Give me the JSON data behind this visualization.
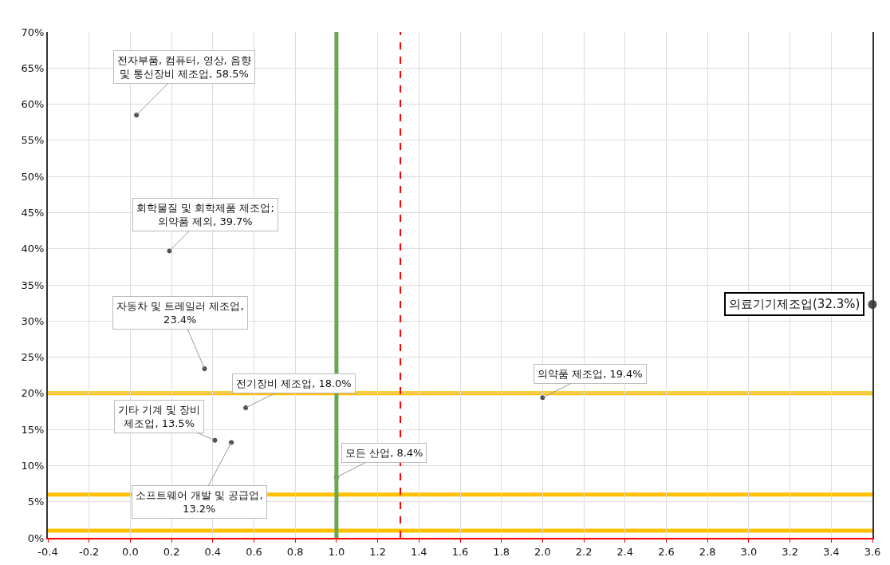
{
  "chart_data": {
    "type": "scatter",
    "marker": "circle",
    "color": "#000000",
    "grid": true,
    "x": [
      0.03,
      0.19,
      0.36,
      0.56,
      0.41,
      0.49,
      1.0,
      2.0,
      3.6
    ],
    "values": [
      58.5,
      39.7,
      23.4,
      18.0,
      13.5,
      13.2,
      8.4,
      19.4,
      32.3
    ],
    "value_labels": [
      "전자부품, 컴퓨터, 영상, 음향\n및 통신장비 제조업, 58.5%",
      "회학물질 및 회학제품 제조업;\n의약품 제외, 39.7%",
      "자동차 및 트레일러 제조업,\n23.4%",
      "전기장비 제조업, 18.0%",
      "기타 기계 및 장비\n제조업, 13.5%",
      "소프트웨어 개발 및 공급업,\n13.2%",
      "모든 산업, 8.4%",
      "의약품 제조업, 19.4%",
      "의료기기제조업(32.3%)"
    ],
    "xlim": [
      -0.4,
      3.6
    ],
    "xticks": [
      {
        "value": -0.4,
        "label": "-0.4"
      },
      {
        "value": -0.2,
        "label": "-0.2"
      },
      {
        "value": 0,
        "label": "0.0"
      },
      {
        "value": 0.2,
        "label": "0.2"
      },
      {
        "value": 0.4,
        "label": "0.4"
      },
      {
        "value": 0.6,
        "label": "0.6"
      },
      {
        "value": 0.8,
        "label": "0.8"
      },
      {
        "value": 1,
        "label": "1.0"
      },
      {
        "value": 1.2,
        "label": "1.2"
      },
      {
        "value": 1.4,
        "label": "1.4"
      },
      {
        "value": 1.6,
        "label": "1.6"
      },
      {
        "value": 1.8,
        "label": "1.8"
      },
      {
        "value": 2,
        "label": "2.0"
      },
      {
        "value": 2.2,
        "label": "2.2"
      },
      {
        "value": 2.4,
        "label": "2.4"
      },
      {
        "value": 2.6,
        "label": "2.6"
      },
      {
        "value": 2.8,
        "label": "2.8"
      },
      {
        "value": 3,
        "label": "3.0"
      },
      {
        "value": 3.2,
        "label": "3.2"
      },
      {
        "value": 3.4,
        "label": "3.4"
      },
      {
        "value": 3.6,
        "label": "3.6"
      }
    ],
    "ylim": [
      0,
      70
    ],
    "yticks": [
      {
        "value": 0,
        "label": "0%"
      },
      {
        "value": 5,
        "label": "5%"
      },
      {
        "value": 10,
        "label": "10%"
      },
      {
        "value": 15,
        "label": "15%"
      },
      {
        "value": 20,
        "label": "20%"
      },
      {
        "value": 25,
        "label": "25%"
      },
      {
        "value": 30,
        "label": "30%"
      },
      {
        "value": 35,
        "label": "35%"
      },
      {
        "value": 40,
        "label": "40%"
      },
      {
        "value": 45,
        "label": "45%"
      },
      {
        "value": 50,
        "label": "50%"
      },
      {
        "value": 55,
        "label": "55%"
      },
      {
        "value": 60,
        "label": "60%"
      },
      {
        "value": 65,
        "label": "65%"
      },
      {
        "value": 70,
        "label": "70%"
      }
    ],
    "ref_lines": [
      {
        "axis": "x",
        "value": 1.0,
        "color": "#6aa84f",
        "line_style": "solid"
      },
      {
        "axis": "x",
        "value": 1.31,
        "color": "#ff0000",
        "line_style": "dashed"
      },
      {
        "axis": "y",
        "value": 20,
        "color": "#ffc000",
        "line_style": "solid"
      },
      {
        "axis": "y",
        "value": 6,
        "color": "#ffc000",
        "line_style": "solid"
      },
      {
        "axis": "y",
        "value": 1,
        "color": "#ffc000",
        "line_style": "solid"
      }
    ]
  }
}
